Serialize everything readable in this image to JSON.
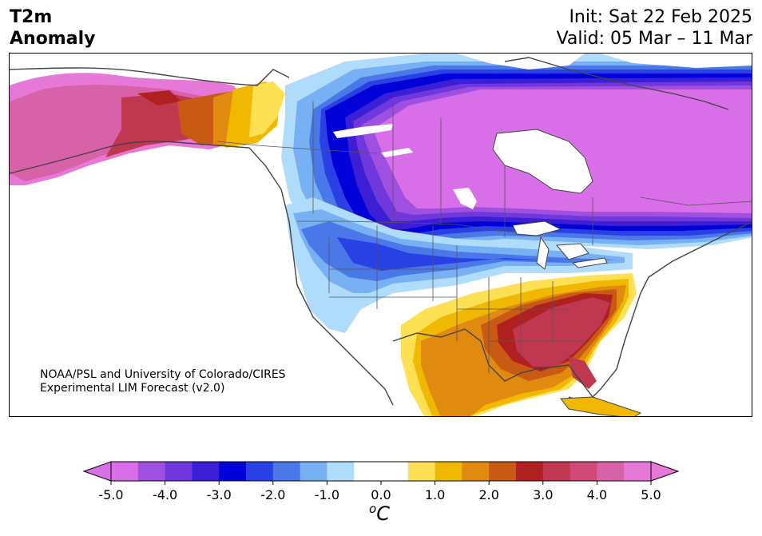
{
  "header": {
    "left_line1": "T2m",
    "left_line2": "Anomaly",
    "right_line1": "Init: Sat 22 Feb 2025",
    "right_line2": "Valid: 05 Mar – 11 Mar"
  },
  "credit": {
    "line1": "NOAA/PSL and University of Colorado/CIRES",
    "line2": "Experimental LIM Forecast (v2.0)"
  },
  "colorbar": {
    "unit_base": "C",
    "unit_sup": "o",
    "tick_labels": [
      "-5.0",
      "-4.0",
      "-3.0",
      "-2.0",
      "-1.0",
      "0.0",
      "1.0",
      "2.0",
      "3.0",
      "4.0",
      "5.0"
    ],
    "colors": [
      "#d96ee9",
      "#a050e0",
      "#7038dc",
      "#3c1ed4",
      "#0000d8",
      "#2840e4",
      "#4a78e8",
      "#78b0f4",
      "#b0dcfc",
      "#ffffff",
      "#ffffff",
      "#fde053",
      "#f0b800",
      "#e08a10",
      "#c85a14",
      "#b02020",
      "#c03850",
      "#d04878",
      "#d862a8",
      "#e678d8"
    ],
    "under_color": "#d96ee9",
    "over_color": "#e678d8"
  },
  "map": {
    "region": "North America",
    "variable": "2m temperature anomaly",
    "colors": {
      "deep_purple": "#d96ee9",
      "violet": "#a050e0",
      "blue_deep": "#0000d8",
      "blue_mid": "#4a78e8",
      "blue_light": "#b0dcfc",
      "yellow": "#fde053",
      "orange": "#e08a10",
      "red": "#b02020",
      "rose": "#c03850",
      "pink": "#d862a8"
    }
  }
}
